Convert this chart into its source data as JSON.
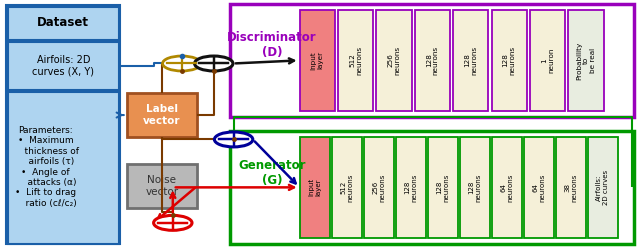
{
  "figsize": [
    6.4,
    2.49
  ],
  "dpi": 100,
  "bg_color": "#ffffff",
  "disc_layers": [
    "Input\nlayer",
    "512\nneurons",
    "256\nneurons",
    "128\nneurons",
    "128\nneurons",
    "128\nneurons",
    "1\nneuron",
    "Probability\nto\nbe real"
  ],
  "disc_layer_colors": [
    "#f08080",
    "#f5f0d8",
    "#f5f0d8",
    "#f5f0d8",
    "#f5f0d8",
    "#f5f0d8",
    "#f5f0d8",
    "#e8ede0"
  ],
  "gen_layers": [
    "Input\nlayer",
    "512\nneurons",
    "256\nneurons",
    "128\nneurons",
    "128\nneurons",
    "128\nneurons",
    "64\nneurons",
    "64\nneurons",
    "38\nneurons",
    "Airfoils:\n2D curves"
  ],
  "gen_layer_colors": [
    "#f08080",
    "#f5f0d8",
    "#f5f0d8",
    "#f5f0d8",
    "#f5f0d8",
    "#f5f0d8",
    "#f5f0d8",
    "#f5f0d8",
    "#f5f0d8",
    "#e8ede0"
  ],
  "blue": "#1a5fa8",
  "brown": "#7a3a00",
  "red": "#dd0000",
  "green": "#009900",
  "purple": "#9900bb",
  "gold": "#b08800",
  "dark_blue": "#000099",
  "black": "#111111",
  "light_blue": "#aed4f0",
  "orange_fc": "#e89050",
  "orange_ec": "#a05020",
  "gray_fc": "#b8b8b8",
  "gray_ec": "#707070"
}
